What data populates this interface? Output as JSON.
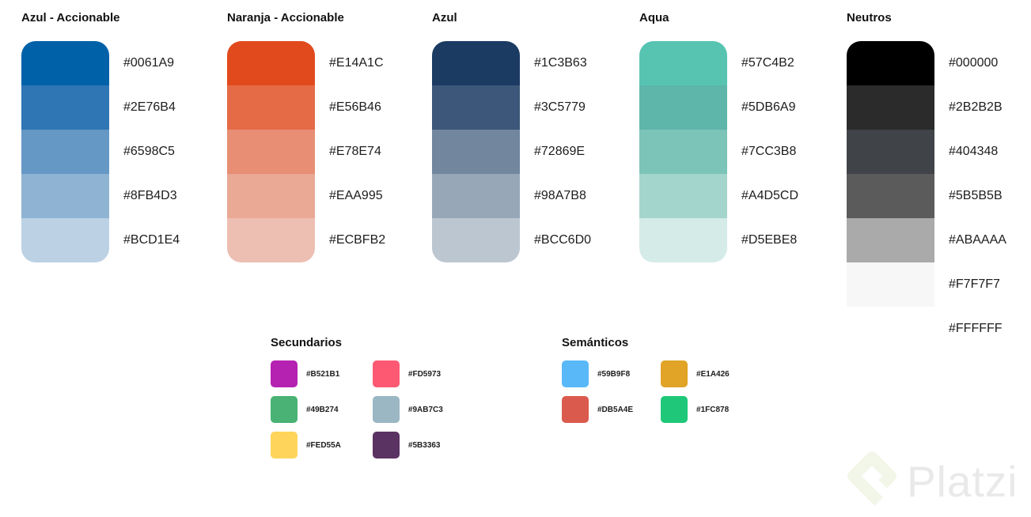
{
  "palettes": [
    {
      "title": "Azul - Accionable",
      "colors": [
        "#0061A9",
        "#2E76B4",
        "#6598C5",
        "#8FB4D3",
        "#BCD1E4"
      ]
    },
    {
      "title": "Naranja - Accionable",
      "colors": [
        "#E14A1C",
        "#E56B46",
        "#E78E74",
        "#EAA995",
        "#ECBFB2"
      ]
    },
    {
      "title": "Azul",
      "colors": [
        "#1C3B63",
        "#3C5779",
        "#72869E",
        "#98A7B8",
        "#BCC6D0"
      ]
    },
    {
      "title": "Aqua",
      "colors": [
        "#57C4B2",
        "#5DB6A9",
        "#7CC3B8",
        "#A4D5CD",
        "#D5EBE8"
      ]
    },
    {
      "title": "Neutros",
      "colors": [
        "#000000",
        "#2B2B2B",
        "#404348",
        "#5B5B5B",
        "#ABAAAA",
        "#F7F7F7",
        "#FFFFFF"
      ]
    }
  ],
  "mini_sections": [
    {
      "title": "Secundarios",
      "colors": [
        "#B521B1",
        "#FD5973",
        "#49B274",
        "#9AB7C3",
        "#FED55A",
        "#5B3363"
      ]
    },
    {
      "title": "Semánticos",
      "colors": [
        "#59B9F8",
        "#E1A426",
        "#DB5A4E",
        "#1FC878"
      ]
    }
  ],
  "watermark": {
    "text": "Platzi",
    "logo_color": "#F2F6E8",
    "text_color": "#E9E9E9"
  }
}
